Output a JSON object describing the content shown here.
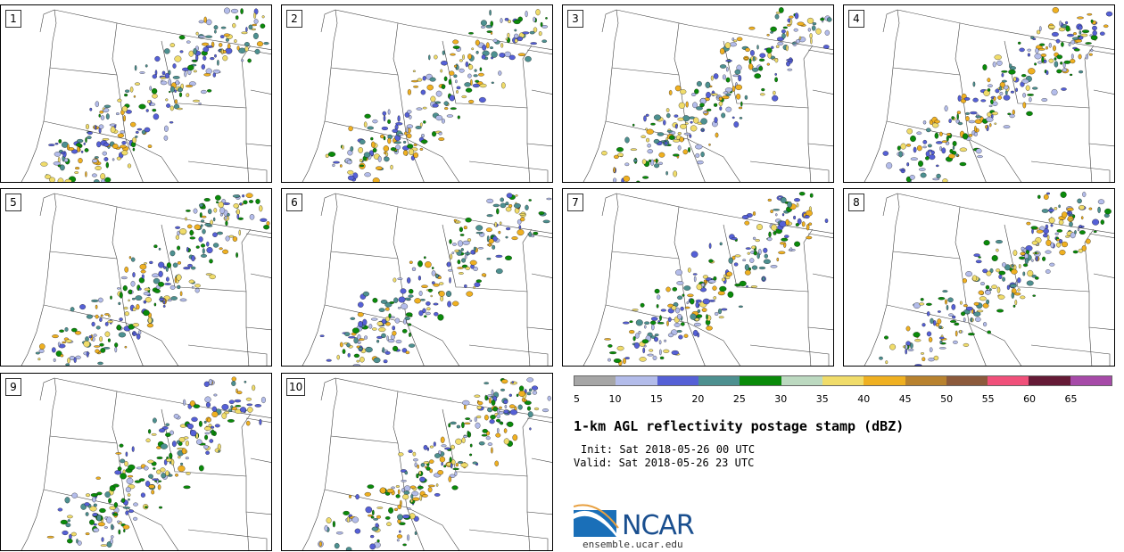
{
  "panels": [
    {
      "label": "1"
    },
    {
      "label": "2"
    },
    {
      "label": "3"
    },
    {
      "label": "4"
    },
    {
      "label": "5"
    },
    {
      "label": "6"
    },
    {
      "label": "7"
    },
    {
      "label": "8"
    },
    {
      "label": "9"
    },
    {
      "label": "10"
    }
  ],
  "legend": {
    "colors": [
      "#a6a6a6",
      "#b3bcea",
      "#5560d6",
      "#4d9090",
      "#0a8a0a",
      "#bcd9c0",
      "#f0dc6a",
      "#efb021",
      "#b8822f",
      "#8c5a3c",
      "#f0507a",
      "#651a36",
      "#a64aa8"
    ],
    "ticks": [
      "5",
      "10",
      "15",
      "20",
      "25",
      "30",
      "35",
      "40",
      "45",
      "50",
      "55",
      "60",
      "65"
    ]
  },
  "title": "1-km AGL reflectivity postage stamp (dBZ)",
  "init": "Init: Sat 2018-05-26 00 UTC",
  "valid": "Valid: Sat 2018-05-26 23 UTC",
  "logo": {
    "name": "NCAR",
    "url": "ensemble.ucar.edu"
  }
}
